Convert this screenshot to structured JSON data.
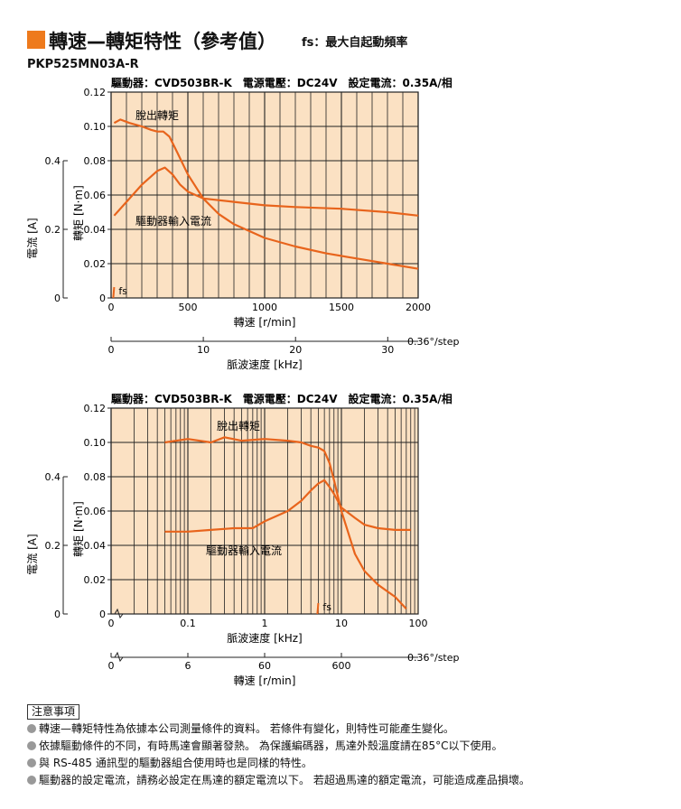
{
  "header": {
    "title": "轉速—轉矩特性（參考值）",
    "title_note": "fs：最大自起動頻率",
    "model": "PKP525MN03A-R"
  },
  "colors": {
    "accent": "#ee7a1c",
    "curve": "#e8641c",
    "plot_bg": "#fbe1c3"
  },
  "chart_data": [
    {
      "type": "line",
      "condition": "驅動器：CVD503BR-K　電源電壓：DC24V　設定電流：0.35A/相",
      "xlabel": "轉速 [r/min]",
      "ylabel": "轉矩 [N·m]",
      "ylabel2": "電流 [A]",
      "xlim": [
        0,
        2000
      ],
      "ylim": [
        0,
        0.12
      ],
      "ylim2": [
        0,
        0.6
      ],
      "x_ticks": [
        "0",
        "500",
        "1000",
        "1500",
        "2000"
      ],
      "y_ticks": [
        "0",
        "0.02",
        "0.04",
        "0.06",
        "0.08",
        "0.10",
        "0.12"
      ],
      "y2_ticks": [
        "0",
        "0.2",
        "0.4"
      ],
      "secondary_axis": {
        "label": "脈波速度 [kHz]",
        "ticks": [
          "0",
          "10",
          "20",
          "30"
        ],
        "suffix": "0.36°/step",
        "range": [
          0,
          33.3
        ]
      },
      "grid": true,
      "annotations": [
        "脫出轉矩",
        "驅動器輸入電流",
        "fs"
      ],
      "fs_x": 20,
      "series": [
        {
          "name": "脫出轉矩",
          "x": [
            20,
            60,
            120,
            200,
            260,
            300,
            340,
            380,
            430,
            500,
            600,
            700,
            800,
            900,
            1000,
            1200,
            1400,
            1600,
            1800,
            2000
          ],
          "y": [
            0.102,
            0.104,
            0.102,
            0.1,
            0.098,
            0.097,
            0.097,
            0.094,
            0.085,
            0.072,
            0.058,
            0.049,
            0.043,
            0.039,
            0.035,
            0.03,
            0.026,
            0.023,
            0.02,
            0.017
          ]
        },
        {
          "name": "驅動器輸入電流",
          "x": [
            20,
            100,
            200,
            300,
            350,
            400,
            450,
            500,
            600,
            800,
            1000,
            1200,
            1500,
            1800,
            2000
          ],
          "y": [
            0.24,
            0.28,
            0.33,
            0.37,
            0.38,
            0.36,
            0.33,
            0.31,
            0.29,
            0.28,
            0.27,
            0.265,
            0.26,
            0.25,
            0.24
          ]
        }
      ]
    },
    {
      "type": "line",
      "condition": "驅動器：CVD503BR-K　電源電壓：DC24V　設定電流：0.35A/相",
      "xlabel": "脈波速度 [kHz]",
      "ylabel": "轉矩 [N·m]",
      "ylabel2": "電流 [A]",
      "x_scale": "log",
      "xlim": [
        0.01,
        100
      ],
      "ylim": [
        0,
        0.12
      ],
      "ylim2": [
        0,
        0.6
      ],
      "x_ticks": [
        "0.1",
        "1",
        "10",
        "100"
      ],
      "y_ticks": [
        "0",
        "0.02",
        "0.04",
        "0.06",
        "0.08",
        "0.10",
        "0.12"
      ],
      "y2_ticks": [
        "0",
        "0.2",
        "0.4"
      ],
      "secondary_axis": {
        "label": "轉速 [r/min]",
        "ticks": [
          "0",
          "6",
          "60",
          "600"
        ],
        "suffix": "0.36°/step"
      },
      "grid": true,
      "annotations": [
        "脫出轉矩",
        "驅動器輸入電流",
        "fs"
      ],
      "fs_x": 5,
      "series": [
        {
          "name": "脫出轉矩",
          "x": [
            0.05,
            0.1,
            0.2,
            0.3,
            0.5,
            1,
            2,
            3,
            4,
            5,
            6,
            7,
            8,
            10,
            15,
            20,
            30,
            50,
            70
          ],
          "y": [
            0.1,
            0.102,
            0.1,
            0.103,
            0.101,
            0.102,
            0.101,
            0.1,
            0.098,
            0.097,
            0.095,
            0.088,
            0.078,
            0.06,
            0.035,
            0.025,
            0.017,
            0.01,
            0.003
          ]
        },
        {
          "name": "驅動器輸入電流",
          "x": [
            0.05,
            0.1,
            0.2,
            0.4,
            0.7,
            1,
            2,
            3,
            4,
            5,
            6,
            7,
            8,
            10,
            15,
            20,
            30,
            50,
            80
          ],
          "y": [
            0.24,
            0.24,
            0.245,
            0.25,
            0.25,
            0.27,
            0.3,
            0.33,
            0.36,
            0.38,
            0.39,
            0.37,
            0.35,
            0.31,
            0.28,
            0.26,
            0.25,
            0.245,
            0.245
          ]
        }
      ]
    }
  ],
  "notes": {
    "heading": "注意事項",
    "items": [
      "轉速—轉矩特性為依據本公司測量條件的資料。 若條件有變化，則特性可能產生變化。",
      "依據驅動條件的不同，有時馬達會顯著發熱。 為保護編碼器，馬達外殼溫度請在85°C以下使用。",
      "與 RS-485 通訊型的驅動器組合使用時也是同樣的特性。",
      "驅動器的設定電流，請務必設定在馬達的額定電流以下。 若超過馬達的額定電流，可能造成產品損壞。"
    ]
  }
}
